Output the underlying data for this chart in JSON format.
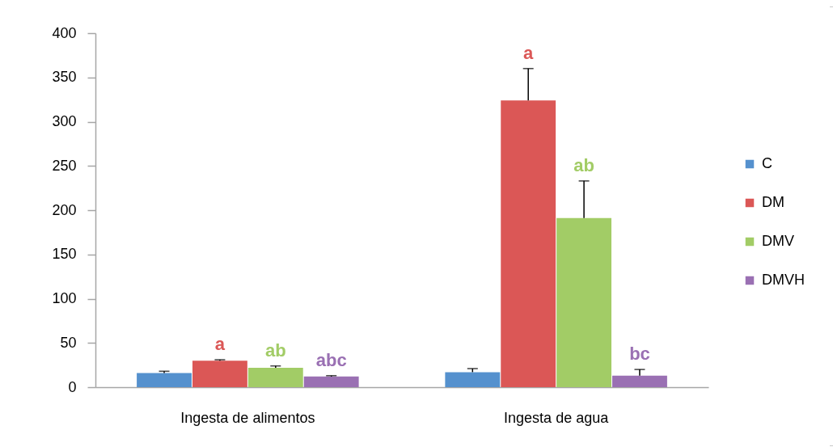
{
  "chart_data": {
    "type": "bar",
    "categories": [
      "Ingesta de alimentos",
      "Ingesta de agua"
    ],
    "series": [
      {
        "name": "C",
        "color": "#5591ce",
        "values": [
          16,
          17
        ],
        "errors": [
          [
            16,
            18
          ],
          [
            17,
            21
          ]
        ],
        "value_labels": [
          null,
          null
        ]
      },
      {
        "name": "DM",
        "color": "#db5756",
        "values": [
          30,
          324
        ],
        "errors": [
          [
            30,
            31
          ],
          [
            324,
            360
          ]
        ],
        "value_labels": [
          "a",
          "a"
        ]
      },
      {
        "name": "DMV",
        "color": "#a2cc66",
        "values": [
          22,
          191
        ],
        "errors": [
          [
            22,
            24
          ],
          [
            191,
            233
          ]
        ],
        "value_labels": [
          "ab",
          "ab"
        ]
      },
      {
        "name": "DMVH",
        "color": "#9a70b3",
        "values": [
          12,
          13
        ],
        "errors": [
          [
            12,
            13
          ],
          [
            13,
            20
          ]
        ],
        "value_labels": [
          "abc",
          "bc"
        ]
      }
    ],
    "ylim": [
      0,
      400
    ],
    "yticks": [
      0,
      50,
      100,
      150,
      200,
      250,
      300,
      350,
      400
    ],
    "grid": false,
    "legend": "right"
  }
}
